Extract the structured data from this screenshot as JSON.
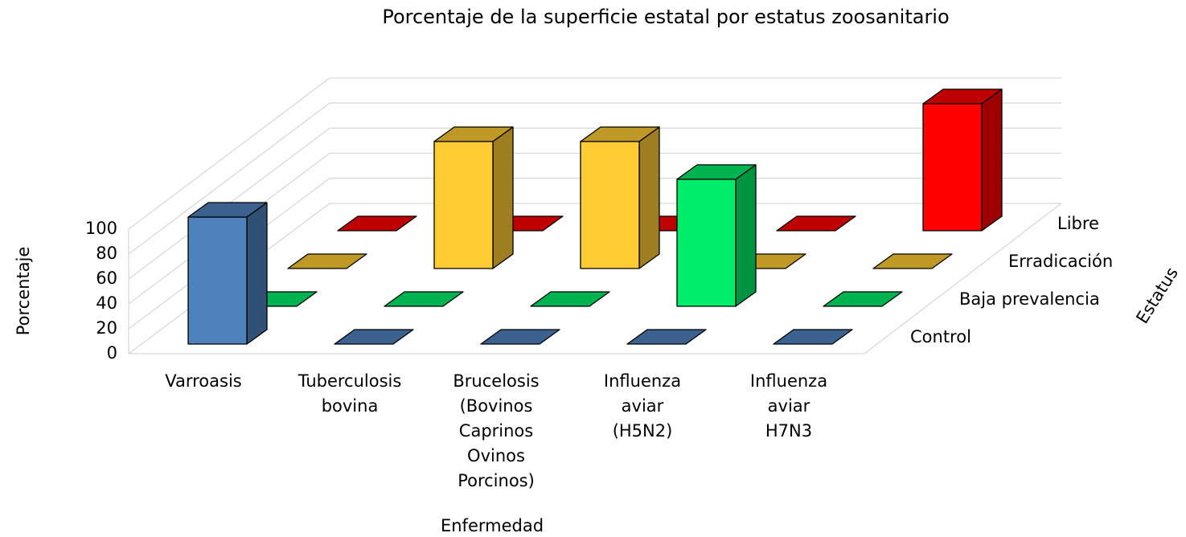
{
  "chart_data": {
    "type": "bar3d",
    "title": "Porcentaje de la superficie estatal por estatus zoosanitario",
    "x_label": "Enfermedad",
    "y_label": "Porcentaje",
    "z_label": "Estatus",
    "categories": [
      "Varroasis",
      "Tuberculosis bovina",
      "Brucelosis (Bovinos Caprinos Ovinos Porcinos)",
      "Influenza aviar (H5N2)",
      "Influenza aviar H7N3"
    ],
    "series": [
      {
        "name": "Control",
        "color": "#4f81bd",
        "values": [
          100,
          0,
          0,
          0,
          0
        ]
      },
      {
        "name": "Baja prevalencia",
        "color": "#00ee6a",
        "values": [
          0,
          0,
          0,
          100,
          0
        ]
      },
      {
        "name": "Erradicación",
        "color": "#ffcc33",
        "values": [
          0,
          100,
          100,
          0,
          0
        ]
      },
      {
        "name": "Libre",
        "color": "#ff0000",
        "values": [
          0,
          0,
          0,
          0,
          100
        ]
      }
    ],
    "ylim": [
      0,
      100
    ],
    "yticks": [
      0,
      20,
      40,
      60,
      80,
      100
    ],
    "grid": true
  }
}
